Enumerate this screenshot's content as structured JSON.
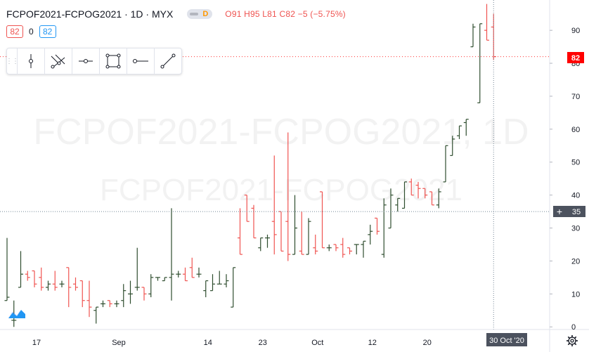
{
  "header": {
    "symbol": "FCPOF2021-FCPOG2021",
    "interval": "1D",
    "exchange": "MYX",
    "badge": "D",
    "ohlc": {
      "o_label": "O",
      "o": "91",
      "h_label": "H",
      "h": "95",
      "l_label": "L",
      "l": "81",
      "c_label": "C",
      "c": "82",
      "change": "−5 (−5.75%)"
    }
  },
  "quote": {
    "bid": "82",
    "spread": "0",
    "ask": "82"
  },
  "watermark": {
    "line1": "FCPOF2021-FCPOG2021, 1D",
    "line2": "FCPOF2021-FCPOG2021"
  },
  "toolbar": {
    "tools": [
      "vertical-line-tool",
      "parallel-lines-tool",
      "horizontal-ray-tool",
      "rectangle-tool",
      "horizontal-line-tool",
      "trend-line-tool"
    ]
  },
  "crosshair": {
    "price_label": "35",
    "date_label": "30 Oct '20"
  },
  "last_price_label": "82",
  "colors": {
    "up": "#2e4d2e",
    "down": "#ef5350",
    "last_price": "#ff0000",
    "crosshair_bg": "#4c525e"
  },
  "chart_data": {
    "type": "ohlc",
    "title": "FCPOF2021-FCPOG2021 · 1D · MYX",
    "ylim": [
      0,
      97
    ],
    "y_ticks": [
      0,
      10,
      20,
      30,
      40,
      50,
      60,
      70,
      80,
      90
    ],
    "x_ticks": [
      "17",
      "Sep",
      "14",
      "23",
      "Oct",
      "12",
      "20"
    ],
    "grid": false,
    "bars": [
      {
        "date": "Aug 11",
        "o": 8,
        "h": 27,
        "l": 8,
        "c": 9
      },
      {
        "date": "Aug 12",
        "o": 2,
        "h": 8,
        "l": 0,
        "c": 2
      },
      {
        "date": "Aug 13",
        "o": 12,
        "h": 23,
        "l": 12,
        "c": 16
      },
      {
        "date": "Aug 14",
        "o": 16,
        "h": 17,
        "l": 14,
        "c": 15
      },
      {
        "date": "Aug 17",
        "o": 17,
        "h": 17,
        "l": 12,
        "c": 13
      },
      {
        "date": "Aug 18",
        "o": 15,
        "h": 18,
        "l": 11,
        "c": 12
      },
      {
        "date": "Aug 19",
        "o": 12,
        "h": 14,
        "l": 11,
        "c": 13
      },
      {
        "date": "Aug 20",
        "o": 13,
        "h": 17,
        "l": 11,
        "c": 12
      },
      {
        "date": "Aug 21",
        "o": 13,
        "h": 14,
        "l": 12,
        "c": 13
      },
      {
        "date": "Aug 24",
        "o": 18,
        "h": 18,
        "l": 6,
        "c": 12
      },
      {
        "date": "Aug 25",
        "o": 13,
        "h": 15,
        "l": 11,
        "c": 12
      },
      {
        "date": "Aug 26",
        "o": 14,
        "h": 14,
        "l": 6,
        "c": 8
      },
      {
        "date": "Aug 27",
        "o": 8,
        "h": 14,
        "l": 3,
        "c": 6
      },
      {
        "date": "Aug 28",
        "o": 5,
        "h": 6,
        "l": 1,
        "c": 6
      },
      {
        "date": "Aug 31",
        "o": 7,
        "h": 8,
        "l": 6,
        "c": 7
      },
      {
        "date": "Sep 1",
        "o": 8,
        "h": 8,
        "l": 6,
        "c": 7
      },
      {
        "date": "Sep 2",
        "o": 7,
        "h": 8,
        "l": 6,
        "c": 7
      },
      {
        "date": "Sep 3",
        "o": 8,
        "h": 13,
        "l": 6,
        "c": 11
      },
      {
        "date": "Sep 4",
        "o": 10,
        "h": 14,
        "l": 7,
        "c": 10
      },
      {
        "date": "Sep 7",
        "o": 12,
        "h": 24,
        "l": 11,
        "c": 12
      },
      {
        "date": "Sep 8",
        "o": 12,
        "h": 12,
        "l": 8,
        "c": 10
      },
      {
        "date": "Sep 9",
        "o": 10,
        "h": 16,
        "l": 9,
        "c": 15
      },
      {
        "date": "Sep 10",
        "o": 15,
        "h": 15,
        "l": 14,
        "c": 15
      },
      {
        "date": "Sep 11",
        "o": 14,
        "h": 15,
        "l": 14,
        "c": 15
      },
      {
        "date": "Sep 14",
        "o": 15,
        "h": 36,
        "l": 8,
        "c": 16
      },
      {
        "date": "Sep 15",
        "o": 16,
        "h": 17,
        "l": 15,
        "c": 16
      },
      {
        "date": "Sep 16",
        "o": 16,
        "h": 18,
        "l": 14,
        "c": 14
      },
      {
        "date": "Sep 17",
        "o": 18,
        "h": 21,
        "l": 15,
        "c": 15
      },
      {
        "date": "Sep 18",
        "o": 16,
        "h": 18,
        "l": 15,
        "c": 16
      },
      {
        "date": "Sep 21",
        "o": 11,
        "h": 14,
        "l": 9,
        "c": 14
      },
      {
        "date": "Sep 22",
        "o": 11,
        "h": 16,
        "l": 11,
        "c": 13
      },
      {
        "date": "Sep 23",
        "o": 13,
        "h": 17,
        "l": 13,
        "c": 13
      },
      {
        "date": "Sep 24",
        "o": 13,
        "h": 16,
        "l": 12,
        "c": 14
      },
      {
        "date": "Sep 25",
        "o": 6,
        "h": 18,
        "l": 6,
        "c": 18
      },
      {
        "date": "Sep 28",
        "o": 27,
        "h": 36,
        "l": 22,
        "c": 22
      },
      {
        "date": "Sep 29",
        "o": 40,
        "h": 40,
        "l": 32,
        "c": 32
      },
      {
        "date": "Sep 30",
        "o": 36,
        "h": 37,
        "l": 27,
        "c": 27
      },
      {
        "date": "Oct 1",
        "o": 24,
        "h": 27,
        "l": 23,
        "c": 27
      },
      {
        "date": "Oct 2",
        "o": 27,
        "h": 28,
        "l": 24,
        "c": 27
      },
      {
        "date": "Oct 5",
        "o": 32,
        "h": 52,
        "l": 22,
        "c": 28
      },
      {
        "date": "Oct 6",
        "o": 35,
        "h": 35,
        "l": 23,
        "c": 23
      },
      {
        "date": "Oct 7",
        "o": 32,
        "h": 59,
        "l": 20,
        "c": 22
      },
      {
        "date": "Oct 8",
        "o": 22,
        "h": 40,
        "l": 22,
        "c": 30
      },
      {
        "date": "Oct 9",
        "o": 23,
        "h": 35,
        "l": 22,
        "c": 22
      },
      {
        "date": "Oct 12",
        "o": 22,
        "h": 33,
        "l": 22,
        "c": 32
      },
      {
        "date": "Oct 13",
        "o": 24,
        "h": 28,
        "l": 22,
        "c": 23
      },
      {
        "date": "Oct 14",
        "o": 41,
        "h": 41,
        "l": 24,
        "c": 24
      },
      {
        "date": "Oct 15",
        "o": 24,
        "h": 25,
        "l": 23,
        "c": 24
      },
      {
        "date": "Oct 16",
        "o": 25,
        "h": 25,
        "l": 23,
        "c": 24
      },
      {
        "date": "Oct 19",
        "o": 25,
        "h": 27,
        "l": 21,
        "c": 22
      },
      {
        "date": "Oct 20",
        "o": 24,
        "h": 24,
        "l": 22,
        "c": 23
      },
      {
        "date": "Oct 21",
        "o": 25,
        "h": 25,
        "l": 22,
        "c": 25
      },
      {
        "date": "Oct 22",
        "o": 25,
        "h": 26,
        "l": 21,
        "c": 26
      },
      {
        "date": "Oct 23",
        "o": 28,
        "h": 31,
        "l": 25,
        "c": 29
      },
      {
        "date": "Oct 26",
        "o": 33,
        "h": 33,
        "l": 28,
        "c": 29
      },
      {
        "date": "Oct 27",
        "o": 22,
        "h": 39,
        "l": 21,
        "c": 37
      },
      {
        "date": "Oct 28",
        "o": 30,
        "h": 42,
        "l": 30,
        "c": 40
      },
      {
        "date": "Oct 29",
        "o": 37,
        "h": 39,
        "l": 35,
        "c": 39
      },
      {
        "date": "Oct 30",
        "o": 36,
        "h": 44,
        "l": 36,
        "c": 44
      },
      {
        "date": "Nov 2",
        "o": 44,
        "h": 45,
        "l": 40,
        "c": 40
      },
      {
        "date": "Nov 3",
        "o": 43,
        "h": 44,
        "l": 39,
        "c": 42
      },
      {
        "date": "Nov 4",
        "o": 42,
        "h": 42,
        "l": 39,
        "c": 40
      },
      {
        "date": "Nov 5",
        "o": 41,
        "h": 41,
        "l": 37,
        "c": 37
      },
      {
        "date": "Nov 6",
        "o": 37,
        "h": 42,
        "l": 36,
        "c": 41
      },
      {
        "date": "Nov 9",
        "o": 44,
        "h": 55,
        "l": 44,
        "c": 55
      },
      {
        "date": "Nov 10",
        "o": 52,
        "h": 58,
        "l": 52,
        "c": 57
      },
      {
        "date": "Nov 11",
        "o": 58,
        "h": 61,
        "l": 57,
        "c": 61
      },
      {
        "date": "Nov 12",
        "o": 62,
        "h": 63,
        "l": 58,
        "c": 63
      },
      {
        "date": "Nov 13",
        "o": 85,
        "h": 92,
        "l": 85,
        "c": 91
      },
      {
        "date": "Nov 16",
        "o": 68,
        "h": 92,
        "l": 68,
        "c": 92
      },
      {
        "date": "Nov 17",
        "o": 90,
        "h": 98,
        "l": 87,
        "c": 87
      },
      {
        "date": "Nov 18",
        "o": 91,
        "h": 95,
        "l": 81,
        "c": 82
      }
    ]
  }
}
